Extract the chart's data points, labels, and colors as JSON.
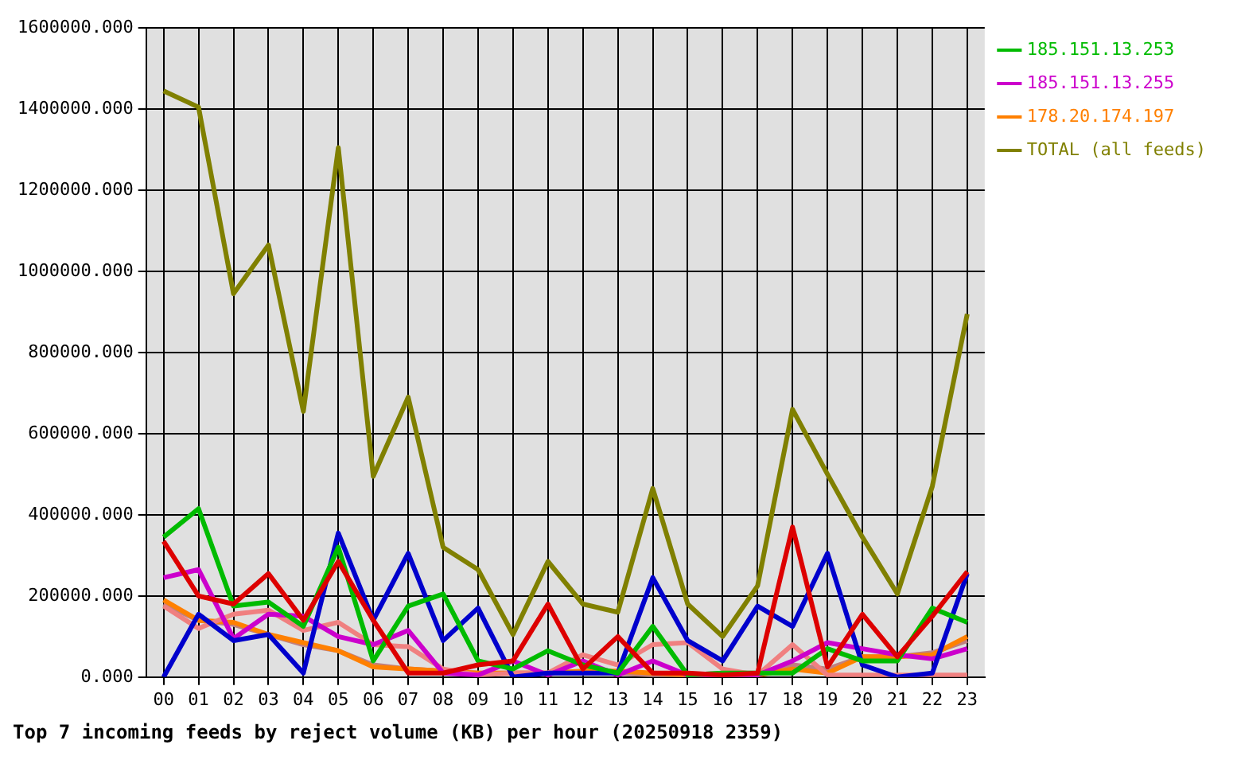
{
  "chart_data": {
    "type": "line",
    "title": "Top 7 incoming feeds by reject volume (KB) per hour (20250918 2359)",
    "categories": [
      "00",
      "01",
      "02",
      "03",
      "04",
      "05",
      "06",
      "07",
      "08",
      "09",
      "10",
      "11",
      "12",
      "13",
      "14",
      "15",
      "16",
      "17",
      "18",
      "19",
      "20",
      "21",
      "22",
      "23"
    ],
    "series": [
      {
        "color": "#dd0000",
        "values": [
          335000,
          200000,
          180000,
          255000,
          140000,
          285000,
          140000,
          10000,
          10000,
          30000,
          40000,
          180000,
          20000,
          100000,
          10000,
          10000,
          5000,
          10000,
          370000,
          25000,
          155000,
          50000,
          150000,
          260000
        ]
      },
      {
        "name": "185.151.13.253",
        "color": "#00bb00",
        "values": [
          345000,
          415000,
          175000,
          185000,
          125000,
          320000,
          40000,
          175000,
          205000,
          40000,
          20000,
          65000,
          30000,
          10000,
          125000,
          5000,
          10000,
          10000,
          10000,
          70000,
          40000,
          40000,
          170000,
          135000
        ]
      },
      {
        "color": "#0000cc",
        "values": [
          0,
          155000,
          90000,
          105000,
          10000,
          355000,
          140000,
          305000,
          90000,
          170000,
          0,
          10000,
          10000,
          10000,
          245000,
          90000,
          40000,
          175000,
          125000,
          305000,
          30000,
          0,
          10000,
          255000
        ]
      },
      {
        "name": "185.151.13.255",
        "color": "#cc00cc",
        "values": [
          245000,
          265000,
          95000,
          155000,
          150000,
          100000,
          80000,
          115000,
          10000,
          5000,
          40000,
          5000,
          40000,
          5000,
          40000,
          5000,
          5000,
          5000,
          40000,
          85000,
          70000,
          55000,
          45000,
          70000
        ]
      },
      {
        "color": "#f08080",
        "values": [
          175000,
          120000,
          155000,
          165000,
          115000,
          135000,
          80000,
          75000,
          20000,
          5000,
          10000,
          10000,
          55000,
          30000,
          80000,
          85000,
          20000,
          5000,
          80000,
          5000,
          5000,
          5000,
          5000,
          5000
        ]
      },
      {
        "name": "178.20.174.197",
        "color": "#ff8000",
        "values": [
          190000,
          140000,
          135000,
          105000,
          85000,
          65000,
          25000,
          20000,
          15000,
          10000,
          10000,
          10000,
          15000,
          15000,
          10000,
          5000,
          5000,
          5000,
          20000,
          10000,
          50000,
          50000,
          55000,
          100000
        ]
      },
      {
        "color": "#c08080",
        "values": [
          180000,
          140000,
          130000,
          105000,
          80000,
          65000,
          30000,
          20000,
          15000,
          10000,
          10000,
          10000,
          10000,
          10000,
          5000,
          5000,
          10000,
          10000,
          30000,
          20000,
          50000,
          50000,
          60000,
          90000
        ]
      },
      {
        "name": "TOTAL (all feeds)",
        "color": "#808000",
        "values": [
          1445000,
          1405000,
          945000,
          1065000,
          655000,
          1305000,
          495000,
          690000,
          320000,
          265000,
          105000,
          285000,
          180000,
          160000,
          465000,
          180000,
          100000,
          225000,
          660000,
          500000,
          345000,
          205000,
          470000,
          895000
        ]
      }
    ],
    "ylim": [
      0,
      1600000
    ],
    "yticks": [
      {
        "value": 0,
        "label": "0.000"
      },
      {
        "value": 200000,
        "label": "200000.000"
      },
      {
        "value": 400000,
        "label": "400000.000"
      },
      {
        "value": 600000,
        "label": "600000.000"
      },
      {
        "value": 800000,
        "label": "800000.000"
      },
      {
        "value": 1000000,
        "label": "1000000.000"
      },
      {
        "value": 1200000,
        "label": "1200000.000"
      },
      {
        "value": 1400000,
        "label": "1400000.000"
      },
      {
        "value": 1600000,
        "label": "1600000.000"
      }
    ],
    "grid": true,
    "legend": "top right",
    "marker": "none",
    "line_style": "solid"
  }
}
